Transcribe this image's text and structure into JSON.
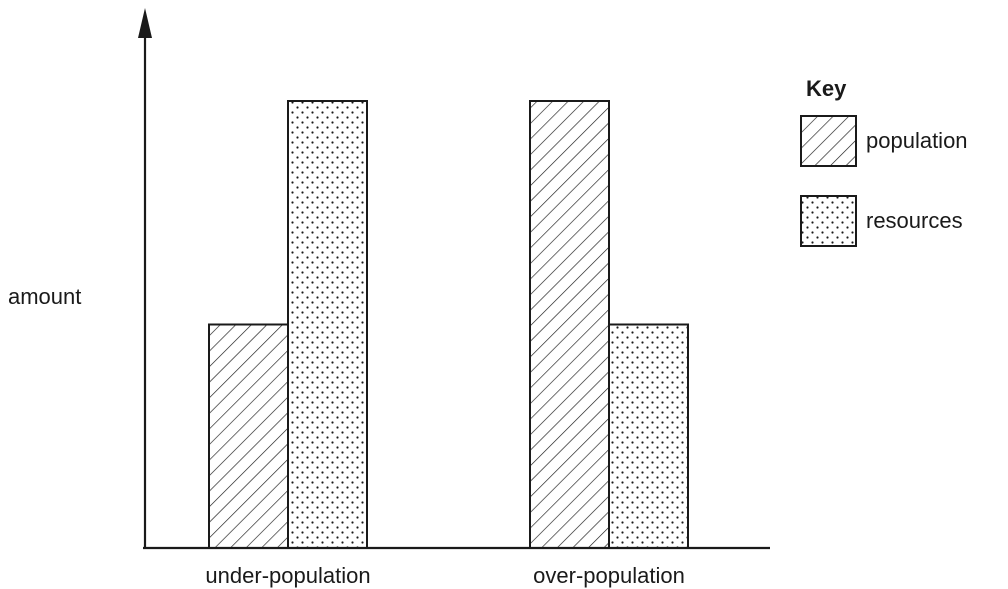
{
  "chart_data": {
    "type": "bar",
    "categories": [
      "under-population",
      "over-population"
    ],
    "series": [
      {
        "name": "population",
        "values": [
          1,
          2
        ],
        "pattern": "diagonal-hatch"
      },
      {
        "name": "resources",
        "values": [
          2,
          1
        ],
        "pattern": "dots"
      }
    ],
    "xlabel": "",
    "ylabel": "amount",
    "ylim": [
      0,
      2.3
    ],
    "grid": false,
    "legend": {
      "title": "Key",
      "placement": "right"
    },
    "colors": {
      "ink": "#1a1a1a",
      "background": "#ffffff"
    }
  }
}
